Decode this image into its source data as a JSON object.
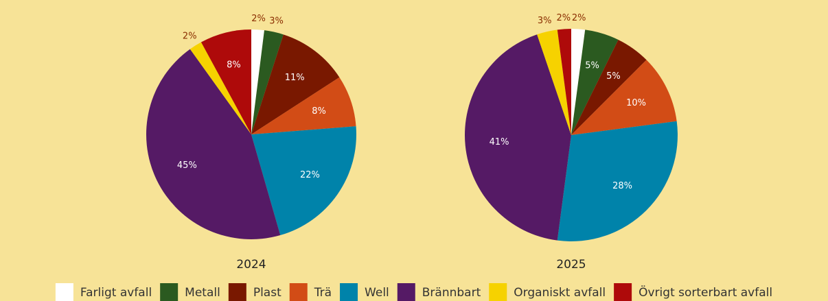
{
  "chart_data": [
    {
      "type": "pie",
      "title": "2024",
      "values": [
        2,
        3,
        11,
        8,
        22,
        45,
        2,
        8
      ],
      "value_labels": [
        "2%",
        "3%",
        "11%",
        "8%",
        "22%",
        "45%",
        "2%",
        "8%"
      ]
    },
    {
      "type": "pie",
      "title": "2025",
      "values": [
        2,
        5,
        5,
        10,
        28,
        41,
        3,
        2
      ],
      "value_labels": [
        "2%",
        "5%",
        "5%",
        "10%",
        "28%",
        "41%",
        "3%",
        "2%"
      ]
    }
  ],
  "legend": {
    "categories": [
      "Farligt avfall",
      "Metall",
      "Plast",
      "Trä",
      "Well",
      "Brännbart",
      "Organiskt avfall",
      "Övrigt sorterbart avfall"
    ],
    "colors": [
      "#ffffff",
      "#2b5a20",
      "#791800",
      "#d24c16",
      "#0083aa",
      "#551a65",
      "#f6d200",
      "#ae0a0a"
    ]
  }
}
